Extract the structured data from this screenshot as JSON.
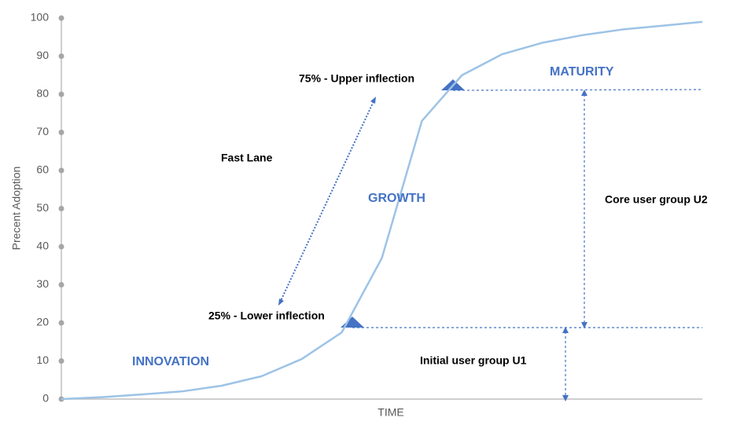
{
  "chart_data": {
    "type": "line",
    "y_label": "Precent Adoption",
    "x_label": "TIME",
    "categories": [
      null,
      null,
      null,
      null,
      null,
      null,
      null,
      null,
      null,
      null,
      null,
      null,
      null,
      null,
      null,
      null,
      null
    ],
    "series": [
      {
        "color": "#9dc3e6",
        "values": [
          0,
          0.5,
          1.2,
          2,
          3.5,
          6,
          10.5,
          17.5,
          37,
          73,
          85,
          90.5,
          93.5,
          95.5,
          97,
          98,
          99
        ]
      }
    ],
    "ylim": [
      0,
      100
    ],
    "yticks": [
      0,
      10,
      20,
      30,
      40,
      50,
      60,
      70,
      80,
      90,
      100
    ],
    "annotations": [
      "75% - Upper inflection",
      "25% -  Lower inflection",
      "Fast Lane",
      "GROWTH",
      "MATURITY",
      "INNOVATION",
      "Core user group U2",
      "Initial user group U1"
    ]
  }
}
